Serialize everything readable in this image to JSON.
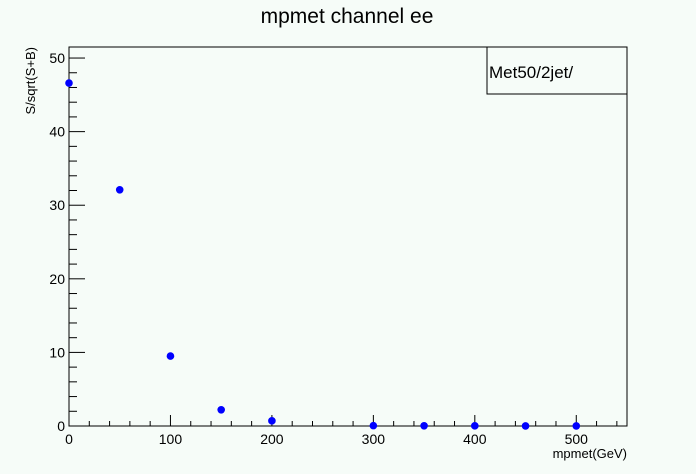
{
  "chart_data": {
    "type": "scatter",
    "title": "mpmet channel  ee",
    "xlabel": "mpmet(GeV)",
    "ylabel": "S/sqrt(S+B)",
    "xlim": [
      0,
      550
    ],
    "ylim": [
      0,
      51.5
    ],
    "x_ticks": [
      0,
      100,
      200,
      300,
      400,
      500
    ],
    "y_ticks": [
      0,
      10,
      20,
      30,
      40,
      50
    ],
    "series": [
      {
        "color": "#0000ff",
        "x": [
          0,
          50,
          100,
          150,
          200,
          300,
          350,
          400,
          450,
          500
        ],
        "y": [
          46.6,
          32.1,
          9.5,
          2.2,
          0.7,
          0.05,
          0.03,
          0.02,
          0.01,
          0.01
        ]
      }
    ],
    "legend": {
      "text": "Met50/2jet/",
      "placement": "top-right"
    },
    "grid": false
  }
}
